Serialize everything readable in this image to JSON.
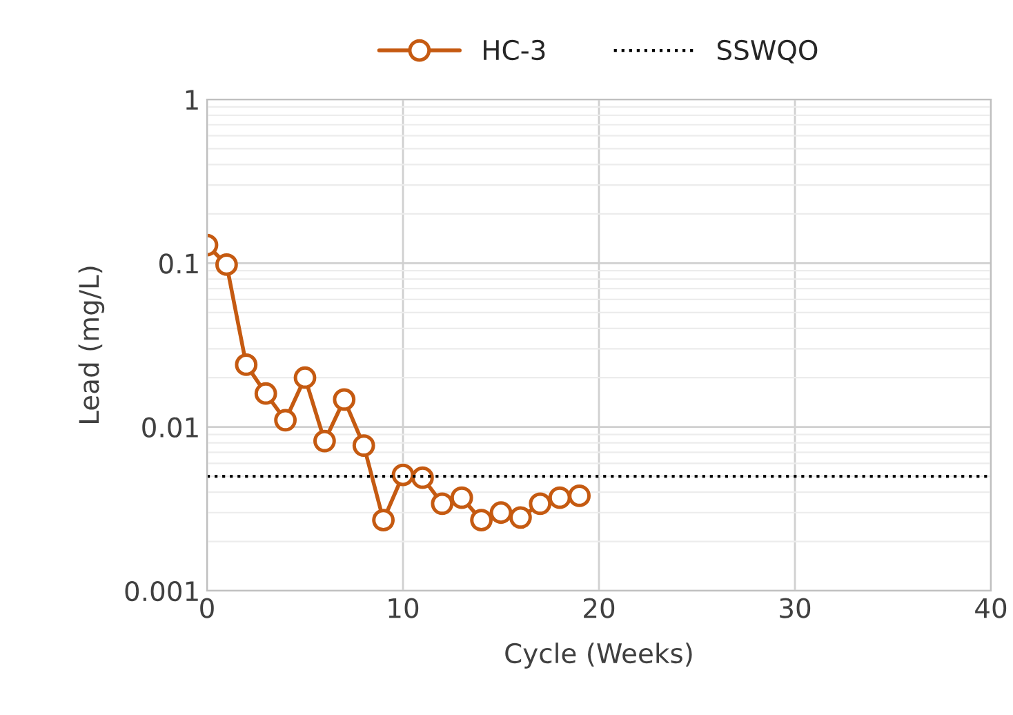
{
  "chart_data": {
    "type": "line",
    "xlabel": "Cycle (Weeks)",
    "ylabel": "Lead (mg/L)",
    "log": "y",
    "x": [
      0,
      1,
      2,
      3,
      4,
      5,
      6,
      7,
      8,
      9,
      10,
      11,
      12,
      13,
      14,
      15,
      16,
      17,
      18,
      19
    ],
    "series": [
      {
        "name": "HC-3",
        "color": "#c55a11",
        "values": [
          0.129,
          0.098,
          0.024,
          0.016,
          0.011,
          0.02,
          0.0082,
          0.0147,
          0.0077,
          0.0027,
          0.0051,
          0.0049,
          0.0034,
          0.0037,
          0.0027,
          0.003,
          0.0028,
          0.0034,
          0.0037,
          0.0038
        ]
      }
    ],
    "ref_lines": [
      {
        "axis": "y",
        "value": 0.005,
        "label": "SSWQO",
        "color": "#000000",
        "line_style": "dotted"
      }
    ],
    "xlim": [
      0,
      40
    ],
    "xticks": [
      0,
      10,
      20,
      30,
      40
    ],
    "ylim": [
      0.001,
      1
    ],
    "yticks": [
      0.001,
      0.01,
      0.1,
      1
    ],
    "grid": true,
    "legend": "top",
    "marker": "circle",
    "line_style": "solid"
  }
}
